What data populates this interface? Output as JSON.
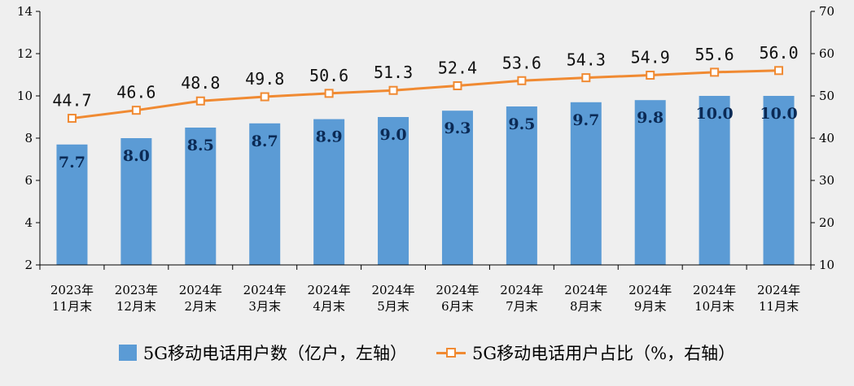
{
  "chart_data": {
    "type": "bar+line",
    "title": "",
    "categories": [
      [
        "2023年",
        "11月末"
      ],
      [
        "2023年",
        "12月末"
      ],
      [
        "2024年",
        "2月末"
      ],
      [
        "2024年",
        "3月末"
      ],
      [
        "2024年",
        "4月末"
      ],
      [
        "2024年",
        "5月末"
      ],
      [
        "2024年",
        "6月末"
      ],
      [
        "2024年",
        "7月末"
      ],
      [
        "2024年",
        "8月末"
      ],
      [
        "2024年",
        "9月末"
      ],
      [
        "2024年",
        "10月末"
      ],
      [
        "2024年",
        "11月末"
      ]
    ],
    "series": [
      {
        "name": "5G移动电话用户数（亿户，左轴）",
        "kind": "bar",
        "axis": "left",
        "color": "#5b9bd5",
        "values": [
          7.7,
          8.0,
          8.5,
          8.7,
          8.9,
          9.0,
          9.3,
          9.5,
          9.7,
          9.8,
          10.0,
          10.0
        ],
        "labels": [
          "7.7",
          "8.0",
          "8.5",
          "8.7",
          "8.9",
          "9.0",
          "9.3",
          "9.5",
          "9.7",
          "9.8",
          "10.0",
          "10.0"
        ]
      },
      {
        "name": "5G移动电话用户占比（%，右轴）",
        "kind": "line",
        "axis": "right",
        "color": "#f08a32",
        "values": [
          44.7,
          46.6,
          48.8,
          49.8,
          50.6,
          51.3,
          52.4,
          53.6,
          54.3,
          54.9,
          55.6,
          56.0
        ],
        "labels": [
          "44.7",
          "46.6",
          "48.8",
          "49.8",
          "50.6",
          "51.3",
          "52.4",
          "53.6",
          "54.3",
          "54.9",
          "55.6",
          "56.0"
        ]
      }
    ],
    "y_left": {
      "min": 2,
      "max": 14,
      "ticks": [
        "2",
        "4",
        "6",
        "8",
        "10",
        "12",
        "14"
      ]
    },
    "y_right": {
      "min": 10,
      "max": 70,
      "ticks": [
        "10",
        "20",
        "30",
        "40",
        "50",
        "60",
        "70"
      ]
    },
    "grid": false,
    "legend": "bottom"
  }
}
